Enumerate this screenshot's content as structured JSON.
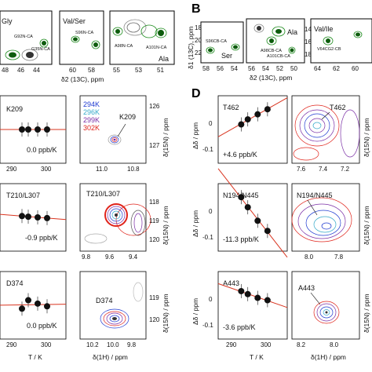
{
  "figure": {
    "panel_b_letter": "B",
    "panel_d_letter": "D"
  },
  "panel_a": {
    "strips": [
      {
        "label": "Gly",
        "peaks": [
          "G92N-CA",
          "G35N-CA"
        ],
        "ticks": [
          "48",
          "46",
          "44"
        ]
      },
      {
        "label": "Val/Ser",
        "peaks": [
          "S96N-CA"
        ],
        "ticks": [
          "60",
          "58"
        ]
      },
      {
        "label": "Ala",
        "peaks": [
          "A98N-CA",
          "A101N-CA"
        ],
        "ticks": [
          "55",
          "53",
          "51"
        ]
      }
    ],
    "xlabel": "δ2 (13C), ppm"
  },
  "panel_b": {
    "strips": [
      {
        "label": "Ser",
        "peaks": [
          "S96CB-CA"
        ],
        "ticks": [
          "58",
          "56",
          "54"
        ]
      },
      {
        "label": "Ala",
        "peaks": [
          "A98CB-CA",
          "A101CB-CA"
        ],
        "ticks": [
          "56",
          "54",
          "52",
          "50"
        ]
      },
      {
        "label": "Val/Ile",
        "peaks": [
          "V64CG2-CB"
        ],
        "ticks": [
          "64",
          "62",
          "60"
        ]
      }
    ],
    "ylabel": "δ1 (13C), ppm",
    "yticks": [
      "18",
      "20",
      "22"
    ],
    "yticks_right": [
      "14",
      "16",
      "18"
    ],
    "xlabel": "δ2 (13C), ppm"
  },
  "panel_c": {
    "temps": [
      {
        "label": "294K",
        "color": "#1f3bd1"
      },
      {
        "label": "296K",
        "color": "#35a9c9"
      },
      {
        "label": "299K",
        "color": "#7b2fa6"
      },
      {
        "label": "302K",
        "color": "#e0241b"
      }
    ],
    "xticks_left": [
      "290",
      "300"
    ],
    "xlabel_left": "T / K",
    "xlabel_right": "δ(1H) / ppm",
    "ylabel_right": "δ(15N) / ppm",
    "rows": [
      {
        "residue": "K209",
        "slope": "0.0 ppb/K",
        "peak_label": "K209",
        "hticks": [
          "11.0",
          "10.8"
        ],
        "nticks": [
          "126",
          "127"
        ]
      },
      {
        "residue": "T210/L307",
        "slope": "-0.9 ppb/K",
        "peak_label": "T210/L307",
        "hticks": [
          "9.8",
          "9.6",
          "9.4"
        ],
        "nticks": [
          "118",
          "119",
          "120"
        ]
      },
      {
        "residue": "D374",
        "slope": "0.0 ppb/K",
        "peak_label": "D374",
        "hticks": [
          "10.2",
          "10.0",
          "9.8"
        ],
        "nticks": [
          "119",
          "120"
        ]
      }
    ]
  },
  "panel_d": {
    "xticks": [
      "290",
      "300"
    ],
    "xlabel": "T / K",
    "xlabel_right": "δ(1H) / ppm",
    "ylabel_left": "Δδ / ppm",
    "ylabel_right": "δ(15N) / ppm",
    "rows": [
      {
        "residue": "T462",
        "slope": "+4.6 ppb/K",
        "peak_label": "T462",
        "yticks": [
          "0",
          "-0.1"
        ],
        "hticks": [
          "7.6",
          "7.4",
          "7.2"
        ],
        "chart_data": {
          "type": "scatter",
          "x": [
            294,
            296,
            299,
            302
          ],
          "y": [
            -0.015,
            0.0,
            0.015,
            0.03
          ],
          "ylim": [
            -0.13,
            0.07
          ]
        }
      },
      {
        "residue": "N194/N445",
        "slope": "-11.3 ppb/K",
        "peak_label": "N194/N445",
        "yticks": [
          "0",
          "-0.1"
        ],
        "hticks": [
          "8.0",
          "7.8"
        ],
        "chart_data": {
          "type": "scatter",
          "x": [
            294,
            296,
            299,
            302
          ],
          "y": [
            0.03,
            0.0,
            -0.04,
            -0.07
          ],
          "ylim": [
            -0.13,
            0.07
          ]
        }
      },
      {
        "residue": "A443",
        "slope": "-3.6 ppb/K",
        "peak_label": "A443",
        "yticks": [
          "0",
          "-0.1"
        ],
        "hticks": [
          "8.2",
          "8.0"
        ],
        "chart_data": {
          "type": "scatter",
          "x": [
            294,
            296,
            299,
            302
          ],
          "y": [
            0.012,
            0.003,
            -0.008,
            -0.015
          ],
          "ylim": [
            -0.13,
            0.07
          ]
        }
      }
    ]
  },
  "chart_data": [
    {
      "type": "scatter",
      "name": "K209",
      "x": [
        294,
        296,
        299,
        302
      ],
      "y": [
        0.0,
        0.0,
        0.0,
        0.0
      ],
      "xlim": [
        287,
        308
      ]
    },
    {
      "type": "scatter",
      "name": "T210/L307",
      "x": [
        294,
        296,
        299,
        302
      ],
      "y": [
        0.004,
        0.002,
        0.0,
        -0.002
      ],
      "xlim": [
        287,
        308
      ]
    },
    {
      "type": "scatter",
      "name": "D374",
      "x": [
        294,
        296,
        299,
        302
      ],
      "y": [
        -0.01,
        0.015,
        0.005,
        -0.003
      ],
      "xlim": [
        287,
        308
      ]
    }
  ]
}
